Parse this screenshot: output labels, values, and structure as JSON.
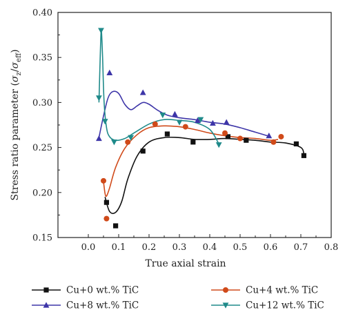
{
  "chart_data": {
    "type": "scatter",
    "title": "",
    "xlabel": "True axial strain",
    "ylabel_parts": {
      "main": "Stress ratio parameter (",
      "sigma1": "σ",
      "sub1": "z",
      "slash": "/",
      "sigma2": "σ",
      "sub2": "eff",
      "close": ")"
    },
    "xlim": [
      -0.1,
      0.8
    ],
    "ylim": [
      0.15,
      0.4
    ],
    "x_ticks": [
      "0.0",
      "0.1",
      "0.2",
      "0.3",
      "0.4",
      "0.5",
      "0.6",
      "0.7",
      "0.8"
    ],
    "y_ticks": [
      "0.15",
      "0.20",
      "0.25",
      "0.30",
      "0.35",
      "0.40"
    ],
    "legend_position": "bottom",
    "series": [
      {
        "name": "Cu+0 wt.% TiC",
        "color": "#111111",
        "marker": "square",
        "points": [
          [
            0.06,
            0.189
          ],
          [
            0.09,
            0.163
          ],
          [
            0.18,
            0.246
          ],
          [
            0.26,
            0.265
          ],
          [
            0.345,
            0.256
          ],
          [
            0.46,
            0.262
          ],
          [
            0.52,
            0.258
          ],
          [
            0.685,
            0.254
          ],
          [
            0.71,
            0.241
          ]
        ],
        "curve": [
          [
            0.055,
            0.195
          ],
          [
            0.07,
            0.179
          ],
          [
            0.09,
            0.178
          ],
          [
            0.11,
            0.19
          ],
          [
            0.13,
            0.215
          ],
          [
            0.16,
            0.24
          ],
          [
            0.2,
            0.256
          ],
          [
            0.25,
            0.261
          ],
          [
            0.3,
            0.261
          ],
          [
            0.35,
            0.259
          ],
          [
            0.4,
            0.259
          ],
          [
            0.45,
            0.26
          ],
          [
            0.5,
            0.259
          ],
          [
            0.55,
            0.258
          ],
          [
            0.6,
            0.256
          ],
          [
            0.65,
            0.255
          ],
          [
            0.7,
            0.25
          ],
          [
            0.71,
            0.243
          ]
        ]
      },
      {
        "name": "Cu+4 wt.% TiC",
        "color": "#d04a1a",
        "marker": "circle",
        "points": [
          [
            0.05,
            0.213
          ],
          [
            0.06,
            0.171
          ],
          [
            0.13,
            0.256
          ],
          [
            0.22,
            0.276
          ],
          [
            0.32,
            0.273
          ],
          [
            0.45,
            0.266
          ],
          [
            0.5,
            0.26
          ],
          [
            0.61,
            0.256
          ],
          [
            0.635,
            0.262
          ]
        ],
        "curve": [
          [
            0.05,
            0.212
          ],
          [
            0.055,
            0.199
          ],
          [
            0.06,
            0.196
          ],
          [
            0.07,
            0.205
          ],
          [
            0.09,
            0.228
          ],
          [
            0.12,
            0.249
          ],
          [
            0.16,
            0.264
          ],
          [
            0.2,
            0.272
          ],
          [
            0.25,
            0.274
          ],
          [
            0.3,
            0.273
          ],
          [
            0.35,
            0.27
          ],
          [
            0.4,
            0.266
          ],
          [
            0.45,
            0.263
          ],
          [
            0.5,
            0.261
          ],
          [
            0.55,
            0.26
          ],
          [
            0.6,
            0.258
          ],
          [
            0.625,
            0.259
          ]
        ]
      },
      {
        "name": "Cu+8 wt.% TiC",
        "color": "#3d35a8",
        "marker": "triangle-up",
        "points": [
          [
            0.035,
            0.26
          ],
          [
            0.07,
            0.333
          ],
          [
            0.18,
            0.311
          ],
          [
            0.285,
            0.287
          ],
          [
            0.36,
            0.28
          ],
          [
            0.41,
            0.277
          ],
          [
            0.455,
            0.278
          ],
          [
            0.595,
            0.263
          ]
        ],
        "curve": [
          [
            0.035,
            0.261
          ],
          [
            0.05,
            0.285
          ],
          [
            0.065,
            0.305
          ],
          [
            0.08,
            0.312
          ],
          [
            0.1,
            0.31
          ],
          [
            0.12,
            0.298
          ],
          [
            0.14,
            0.292
          ],
          [
            0.16,
            0.296
          ],
          [
            0.18,
            0.3
          ],
          [
            0.2,
            0.298
          ],
          [
            0.23,
            0.291
          ],
          [
            0.26,
            0.286
          ],
          [
            0.3,
            0.283
          ],
          [
            0.35,
            0.281
          ],
          [
            0.4,
            0.278
          ],
          [
            0.45,
            0.276
          ],
          [
            0.5,
            0.272
          ],
          [
            0.55,
            0.267
          ],
          [
            0.59,
            0.263
          ]
        ]
      },
      {
        "name": "Cu+12 wt.% TiC",
        "color": "#1f8a8a",
        "marker": "triangle-down",
        "points": [
          [
            0.042,
            0.38
          ],
          [
            0.035,
            0.305
          ],
          [
            0.055,
            0.279
          ],
          [
            0.085,
            0.256
          ],
          [
            0.14,
            0.261
          ],
          [
            0.245,
            0.286
          ],
          [
            0.3,
            0.278
          ],
          [
            0.37,
            0.281
          ],
          [
            0.43,
            0.253
          ]
        ],
        "curve": [
          [
            0.035,
            0.3
          ],
          [
            0.04,
            0.36
          ],
          [
            0.043,
            0.38
          ],
          [
            0.047,
            0.35
          ],
          [
            0.052,
            0.3
          ],
          [
            0.06,
            0.272
          ],
          [
            0.07,
            0.262
          ],
          [
            0.09,
            0.258
          ],
          [
            0.12,
            0.26
          ],
          [
            0.15,
            0.266
          ],
          [
            0.2,
            0.276
          ],
          [
            0.25,
            0.281
          ],
          [
            0.3,
            0.28
          ],
          [
            0.35,
            0.278
          ],
          [
            0.4,
            0.27
          ],
          [
            0.43,
            0.254
          ]
        ]
      }
    ]
  }
}
